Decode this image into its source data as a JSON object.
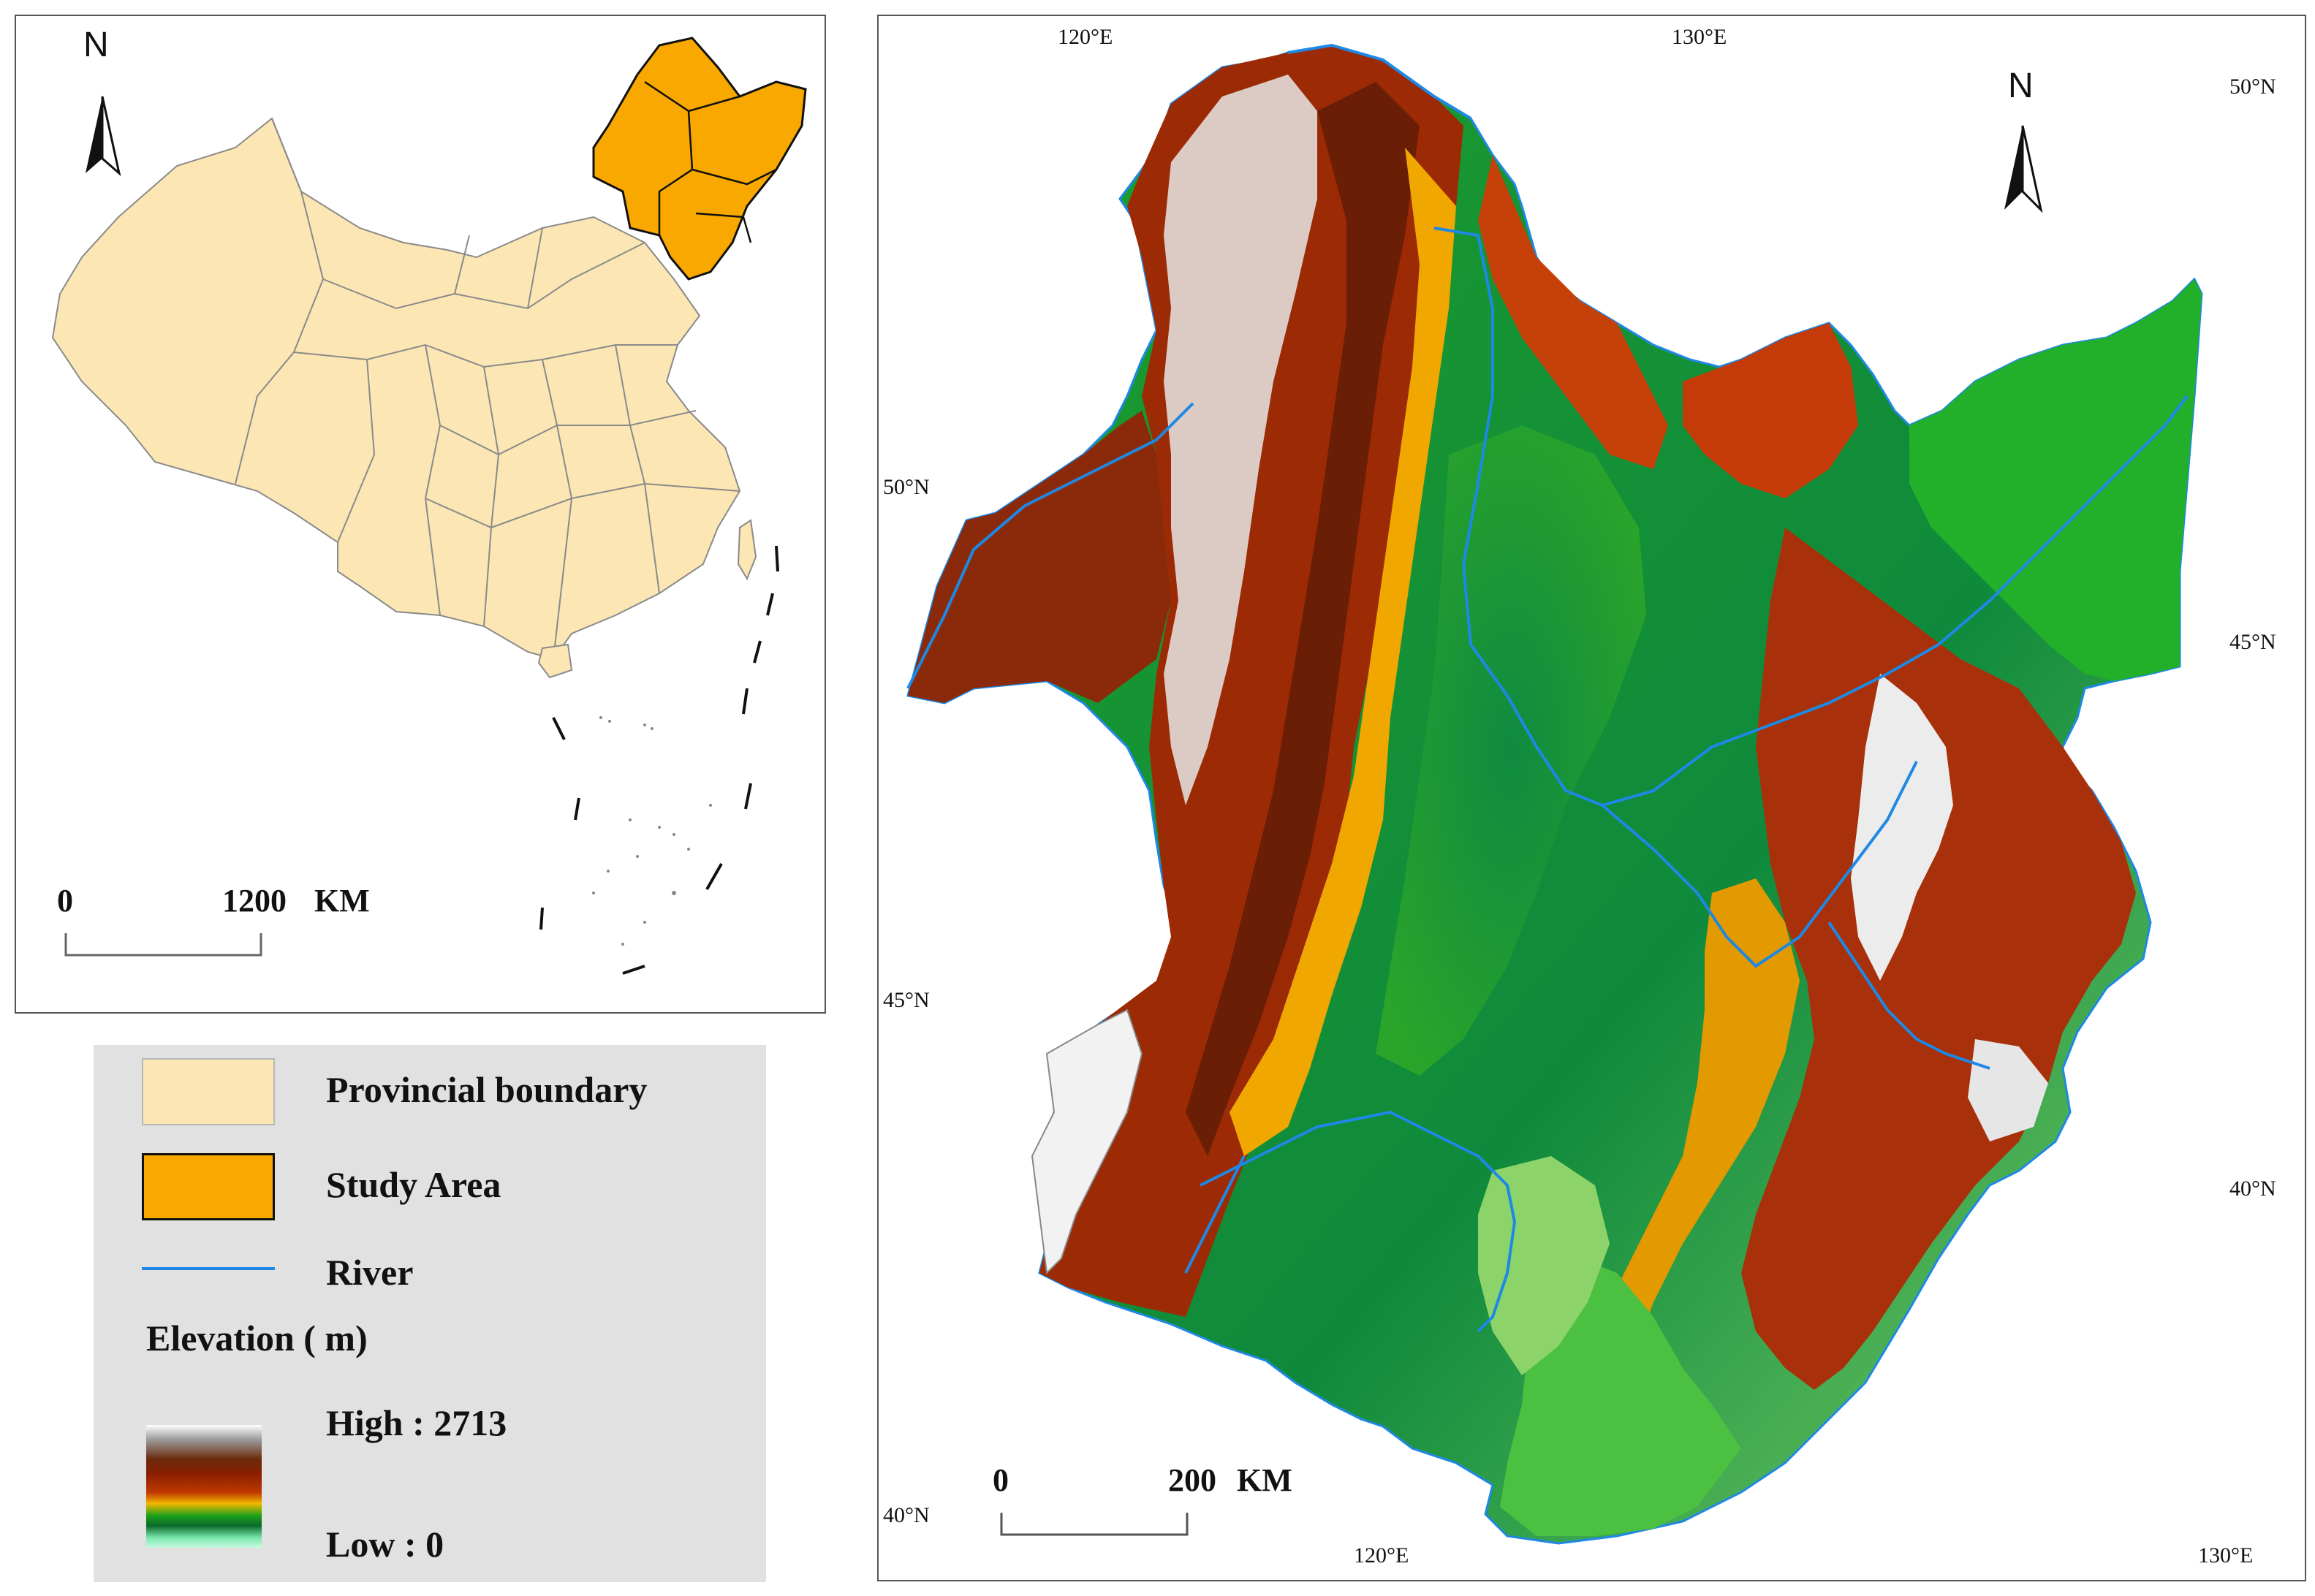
{
  "inset_map": {
    "north_label": "N",
    "scale": {
      "start": "0",
      "end": "1200",
      "unit": "KM"
    }
  },
  "main_map": {
    "north_label": "N",
    "scale": {
      "start": "0",
      "end": "200",
      "unit": "KM"
    },
    "top_lon_labels": [
      "120°E",
      "130°E"
    ],
    "bottom_lon_labels": [
      "120°E",
      "130°E"
    ],
    "left_lat_labels": [
      "50°N",
      "45°N",
      "40°N"
    ],
    "right_lat_labels": [
      "50°N",
      "45°N",
      "40°N"
    ]
  },
  "legend": {
    "provincial_boundary": {
      "label": "Provincial boundary",
      "color": "#fbe6b4"
    },
    "study_area": {
      "label": "Study Area",
      "color": "#f9a800"
    },
    "river": {
      "label": "River",
      "color": "#1e88e5"
    },
    "elevation": {
      "title": "Elevation ( m)",
      "high_label": "High : 2713",
      "low_label": "Low : 0",
      "ramp_colors": [
        "#ffffff",
        "#9a9a9a",
        "#6b2a0c",
        "#a61c00",
        "#f2a900",
        "#1d9a1d",
        "#0a7a3a",
        "#9ef7c8"
      ]
    }
  }
}
